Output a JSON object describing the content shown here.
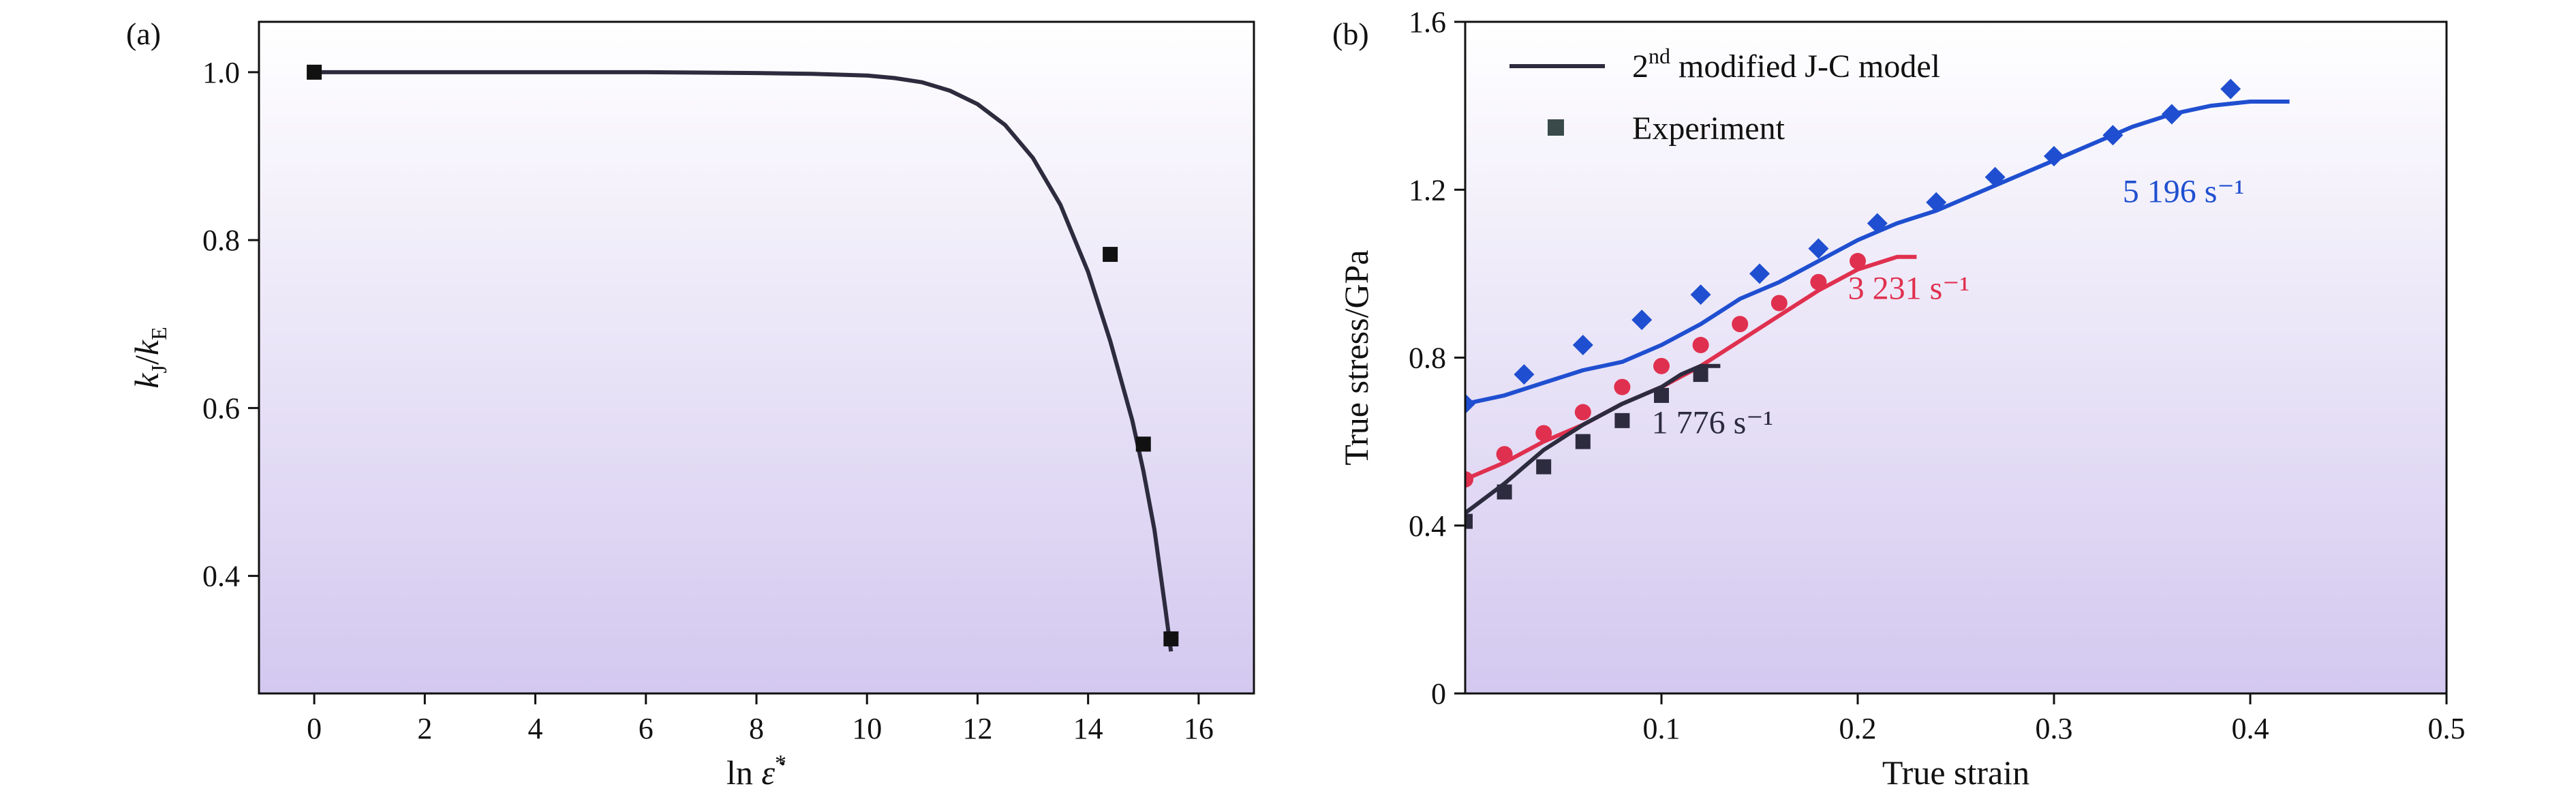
{
  "chart_data": [
    {
      "panel": "(a)",
      "type": "line",
      "xlabel": "ln ε̇*",
      "ylabel": "kJ/kE",
      "xlim": [
        -1,
        17
      ],
      "ylim": [
        0.26,
        1.06
      ],
      "xticks": [
        "0",
        "2",
        "4",
        "6",
        "8",
        "10",
        "12",
        "14",
        "16"
      ],
      "xtick_values": [
        0,
        2,
        4,
        6,
        8,
        10,
        12,
        14,
        16
      ],
      "yticks": [
        "0.4",
        "0.6",
        "0.8",
        "1.0"
      ],
      "ytick_values": [
        0.4,
        0.6,
        0.8,
        1.0
      ],
      "series": [
        {
          "kind": "line",
          "color": "#2d2b3e",
          "x": [
            0,
            2,
            4,
            6,
            8,
            9,
            10,
            10.5,
            11,
            11.5,
            12,
            12.5,
            13,
            13.5,
            14,
            14.4,
            14.8,
            15.0,
            15.2,
            15.4,
            15.5
          ],
          "y": [
            1.0,
            1.0,
            1.0,
            1.0,
            0.999,
            0.998,
            0.996,
            0.993,
            0.988,
            0.978,
            0.962,
            0.937,
            0.898,
            0.842,
            0.762,
            0.68,
            0.585,
            0.525,
            0.455,
            0.36,
            0.31
          ]
        },
        {
          "kind": "marker",
          "marker": "square",
          "color": "#111111",
          "x": [
            0,
            14.4,
            15.0,
            15.5
          ],
          "y": [
            1.0,
            0.783,
            0.557,
            0.325
          ]
        }
      ]
    },
    {
      "panel": "(b)",
      "type": "line",
      "xlabel": "True strain",
      "ylabel": "True stress/GPa",
      "xlim": [
        0,
        0.5
      ],
      "ylim": [
        0,
        1.6
      ],
      "xticks": [
        "0.1",
        "0.2",
        "0.3",
        "0.4",
        "0.5"
      ],
      "xtick_values": [
        0.1,
        0.2,
        0.3,
        0.4,
        0.5
      ],
      "yticks": [
        "0",
        "0.4",
        "0.8",
        "1.2",
        "1.6"
      ],
      "ytick_values": [
        0,
        0.4,
        0.8,
        1.2,
        1.6
      ],
      "legend": {
        "position": "top-left",
        "entries": [
          {
            "label_main": "2",
            "label_sup": "nd",
            "label_rest": " modified J-C model",
            "symbol": "line",
            "color": "#2d2b3e"
          },
          {
            "label": "Experiment",
            "symbol": "square",
            "color": "#3a4a4a"
          }
        ]
      },
      "series": [
        {
          "label": "5 196 s⁻¹",
          "color": "#1f4fd0",
          "line_x": [
            0,
            0.02,
            0.04,
            0.06,
            0.08,
            0.1,
            0.12,
            0.14,
            0.16,
            0.18,
            0.2,
            0.22,
            0.24,
            0.26,
            0.28,
            0.3,
            0.32,
            0.34,
            0.36,
            0.38,
            0.4,
            0.42
          ],
          "line_y": [
            0.69,
            0.71,
            0.74,
            0.77,
            0.79,
            0.83,
            0.88,
            0.94,
            0.98,
            1.03,
            1.08,
            1.12,
            1.15,
            1.19,
            1.23,
            1.27,
            1.31,
            1.35,
            1.38,
            1.4,
            1.41,
            1.41
          ],
          "marker": "diamond",
          "points_x": [
            0,
            0.03,
            0.06,
            0.09,
            0.12,
            0.15,
            0.18,
            0.21,
            0.24,
            0.27,
            0.3,
            0.33,
            0.36,
            0.39
          ],
          "points_y": [
            0.69,
            0.76,
            0.83,
            0.89,
            0.95,
            1.0,
            1.06,
            1.12,
            1.17,
            1.23,
            1.28,
            1.33,
            1.38,
            1.44
          ]
        },
        {
          "label": "3 231 s⁻¹",
          "color": "#e0304f",
          "line_x": [
            0,
            0.02,
            0.04,
            0.06,
            0.08,
            0.1,
            0.12,
            0.14,
            0.16,
            0.18,
            0.2,
            0.22,
            0.23
          ],
          "line_y": [
            0.51,
            0.55,
            0.6,
            0.64,
            0.69,
            0.73,
            0.78,
            0.84,
            0.9,
            0.96,
            1.01,
            1.04,
            1.04
          ],
          "marker": "circle",
          "points_x": [
            0,
            0.02,
            0.04,
            0.06,
            0.08,
            0.1,
            0.12,
            0.14,
            0.16,
            0.18,
            0.2
          ],
          "points_y": [
            0.51,
            0.57,
            0.62,
            0.67,
            0.73,
            0.78,
            0.83,
            0.88,
            0.93,
            0.98,
            1.03
          ]
        },
        {
          "label": "1 776 s⁻¹",
          "color": "#2d2b3e",
          "line_x": [
            0,
            0.02,
            0.04,
            0.06,
            0.08,
            0.1,
            0.11,
            0.12,
            0.13
          ],
          "line_y": [
            0.43,
            0.5,
            0.58,
            0.64,
            0.69,
            0.73,
            0.76,
            0.78,
            0.78
          ],
          "marker": "square",
          "points_x": [
            0,
            0.02,
            0.04,
            0.06,
            0.08,
            0.1,
            0.12
          ],
          "points_y": [
            0.41,
            0.48,
            0.54,
            0.6,
            0.65,
            0.71,
            0.76
          ]
        }
      ]
    }
  ]
}
